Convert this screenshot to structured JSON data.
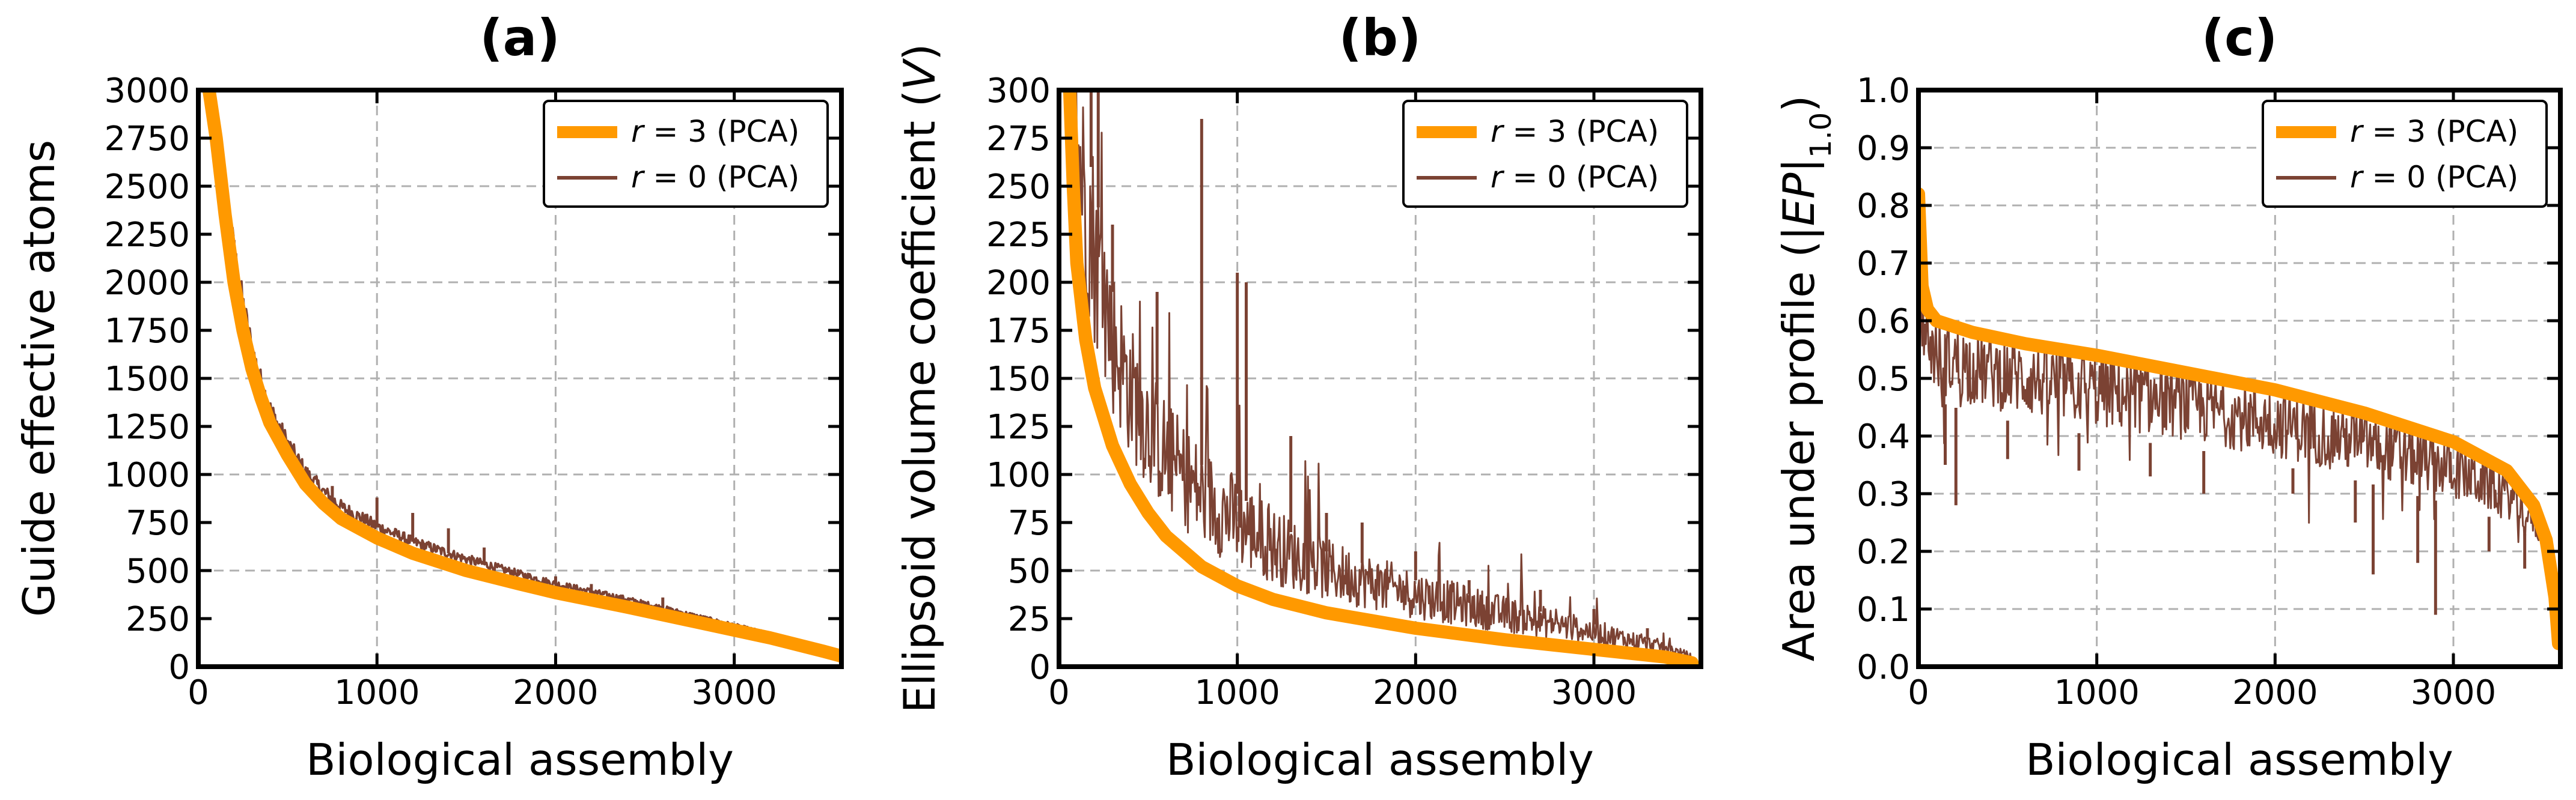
{
  "colors": {
    "r3": "#FF9900",
    "r0": "#7B4233",
    "grid": "#b0b0b0",
    "axis": "#000000"
  },
  "chart_data": [
    {
      "type": "line",
      "title": "(a)",
      "xlabel": "Biological assembly",
      "ylabel": "Guide effective atoms",
      "xlim": [
        0,
        3600
      ],
      "ylim": [
        0,
        3000
      ],
      "xticks": [
        0,
        1000,
        2000,
        3000
      ],
      "yticks": [
        0,
        250,
        500,
        750,
        1000,
        1250,
        1500,
        1750,
        2000,
        2250,
        2500,
        2750,
        3000
      ],
      "xtick_labels": [
        "0",
        "1000",
        "2000",
        "3000"
      ],
      "ytick_labels": [
        "0",
        "250",
        "500",
        "750",
        "1000",
        "1250",
        "1500",
        "1750",
        "2000",
        "2250",
        "2500",
        "2750",
        "3000"
      ],
      "grid": true,
      "legend_position": "top-right",
      "series": [
        {
          "name": "r = 3 (PCA)",
          "label_var": "r",
          "label_rest": " = 3 (PCA)",
          "style": "thick-smooth",
          "x": [
            60,
            100,
            150,
            200,
            250,
            300,
            350,
            400,
            500,
            600,
            700,
            800,
            1000,
            1200,
            1500,
            1800,
            2000,
            2400,
            2800,
            3200,
            3500,
            3600
          ],
          "y": [
            3000,
            2750,
            2350,
            2000,
            1750,
            1550,
            1400,
            1270,
            1100,
            950,
            850,
            770,
            670,
            590,
            500,
            430,
            385,
            310,
            230,
            150,
            80,
            55
          ]
        },
        {
          "name": "r = 0 (PCA)",
          "label_var": "r",
          "label_rest": " = 0 (PCA)",
          "style": "thin-noisy",
          "x": [
            60,
            100,
            150,
            200,
            250,
            300,
            350,
            400,
            500,
            600,
            700,
            800,
            1000,
            1200,
            1500,
            1800,
            2000,
            2400,
            2800,
            3200,
            3500,
            3600
          ],
          "y": [
            3000,
            2800,
            2450,
            2150,
            1880,
            1650,
            1480,
            1340,
            1160,
            1010,
            910,
            830,
            730,
            650,
            560,
            480,
            430,
            350,
            260,
            170,
            95,
            60
          ],
          "spikes": [
            [
              200,
              2220
            ],
            [
              300,
              1550
            ],
            [
              400,
              1350
            ],
            [
              600,
              1000
            ],
            [
              750,
              940
            ],
            [
              1000,
              880
            ],
            [
              1200,
              800
            ],
            [
              1400,
              720
            ],
            [
              1600,
              620
            ],
            [
              2000,
              470
            ],
            [
              2200,
              430
            ],
            [
              2600,
              360
            ]
          ]
        }
      ]
    },
    {
      "type": "line",
      "title": "(b)",
      "xlabel": "Biological assembly",
      "ylabel_prefix": "Ellipsoid volume coefficient (",
      "ylabel_var": "V",
      "ylabel_suffix": ")",
      "xlim": [
        0,
        3600
      ],
      "ylim": [
        0,
        300
      ],
      "xticks": [
        0,
        1000,
        2000,
        3000
      ],
      "yticks": [
        0,
        25,
        50,
        75,
        100,
        125,
        150,
        175,
        200,
        225,
        250,
        275,
        300
      ],
      "xtick_labels": [
        "0",
        "1000",
        "2000",
        "3000"
      ],
      "ytick_labels": [
        "0",
        "25",
        "50",
        "75",
        "100",
        "125",
        "150",
        "175",
        "200",
        "225",
        "250",
        "275",
        "300"
      ],
      "grid": true,
      "legend_position": "top-right",
      "series": [
        {
          "name": "r = 3 (PCA)",
          "label_var": "r",
          "label_rest": " = 3 (PCA)",
          "style": "thick-smooth",
          "x": [
            60,
            80,
            100,
            150,
            200,
            300,
            400,
            500,
            600,
            800,
            1000,
            1200,
            1500,
            2000,
            2500,
            3000,
            3400,
            3550
          ],
          "y": [
            300,
            250,
            210,
            170,
            145,
            115,
            95,
            80,
            68,
            52,
            42,
            35,
            28,
            20,
            14,
            9,
            5,
            2
          ]
        },
        {
          "name": "r = 0 (PCA)",
          "label_var": "r",
          "label_rest": " = 0 (PCA)",
          "style": "band-noisy",
          "x": [
            60,
            100,
            200,
            300,
            400,
            500,
            600,
            800,
            1000,
            1200,
            1500,
            2000,
            2500,
            3000,
            3400,
            3550
          ],
          "y": [
            300,
            300,
            250,
            195,
            165,
            145,
            128,
            105,
            90,
            75,
            60,
            45,
            33,
            22,
            12,
            6
          ],
          "spikes": [
            [
              180,
              300
            ],
            [
              220,
              300
            ],
            [
              300,
              230
            ],
            [
              550,
              195
            ],
            [
              800,
              285
            ],
            [
              1000,
              205
            ],
            [
              1050,
              200
            ],
            [
              1300,
              120
            ],
            [
              1500,
              80
            ],
            [
              1700,
              75
            ],
            [
              2000,
              60
            ],
            [
              2300,
              45
            ],
            [
              2700,
              40
            ],
            [
              3000,
              30
            ],
            [
              3300,
              20
            ]
          ]
        }
      ]
    },
    {
      "type": "line",
      "title": "(c)",
      "xlabel": "Biological assembly",
      "ylabel_prefix": "Area under profile (",
      "ylabel_var": "|EP|",
      "ylabel_sub": "1.0",
      "ylabel_suffix": ")",
      "xlim": [
        0,
        3600
      ],
      "ylim": [
        0.0,
        1.0
      ],
      "xticks": [
        0,
        1000,
        2000,
        3000
      ],
      "yticks": [
        0.0,
        0.1,
        0.2,
        0.3,
        0.4,
        0.5,
        0.6,
        0.7,
        0.8,
        0.9,
        1.0
      ],
      "xtick_labels": [
        "0",
        "1000",
        "2000",
        "3000"
      ],
      "ytick_labels": [
        "0.0",
        "0.1",
        "0.2",
        "0.3",
        "0.4",
        "0.5",
        "0.6",
        "0.7",
        "0.8",
        "0.9",
        "1.0"
      ],
      "grid": true,
      "legend_position": "top-right",
      "series": [
        {
          "name": "r = 3 (PCA)",
          "label_var": "r",
          "label_rest": " = 3 (PCA)",
          "style": "thick-smooth",
          "x": [
            0,
            20,
            50,
            100,
            300,
            600,
            1000,
            1500,
            2000,
            2500,
            3000,
            3300,
            3450,
            3520,
            3570,
            3590
          ],
          "y": [
            0.82,
            0.66,
            0.62,
            0.6,
            0.58,
            0.56,
            0.54,
            0.51,
            0.48,
            0.44,
            0.39,
            0.34,
            0.28,
            0.22,
            0.12,
            0.04
          ]
        },
        {
          "name": "r = 0 (PCA)",
          "label_var": "r",
          "label_rest": " = 0 (PCA)",
          "style": "band-noisy-below",
          "x": [
            0,
            50,
            100,
            300,
            600,
            1000,
            1500,
            2000,
            2500,
            3000,
            3300,
            3450,
            3550,
            3590
          ],
          "y": [
            0.55,
            0.5,
            0.46,
            0.44,
            0.42,
            0.4,
            0.38,
            0.35,
            0.32,
            0.28,
            0.25,
            0.22,
            0.18,
            0.12
          ],
          "spikes": [
            [
              150,
              0.35
            ],
            [
              210,
              0.28
            ],
            [
              500,
              0.36
            ],
            [
              900,
              0.34
            ],
            [
              1300,
              0.33
            ],
            [
              1600,
              0.3
            ],
            [
              2100,
              0.3
            ],
            [
              2450,
              0.25
            ],
            [
              2550,
              0.16
            ],
            [
              2800,
              0.18
            ],
            [
              2900,
              0.09
            ],
            [
              3200,
              0.2
            ],
            [
              3400,
              0.17
            ],
            [
              3550,
              0.13
            ]
          ]
        }
      ]
    }
  ]
}
